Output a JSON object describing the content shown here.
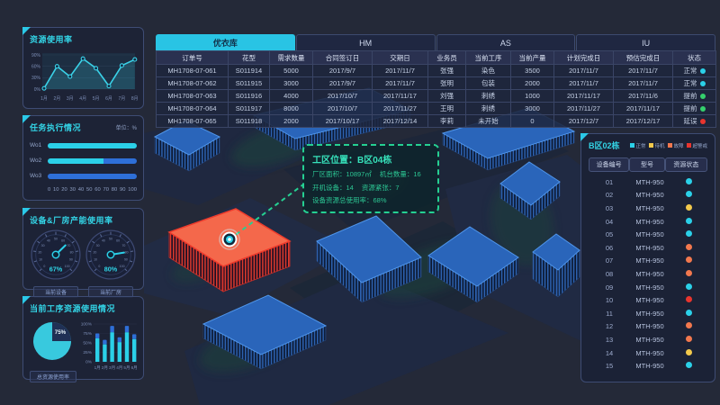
{
  "colors": {
    "accent_cyan": "#2bc9e8",
    "bar_cyan": "#2bd0e8",
    "bar_blue": "#2e6fd8",
    "status_normal": "#2bd0e8",
    "status_standby": "#f2c94c",
    "status_fault": "#f2784e",
    "status_alarm": "#e8352e",
    "status_early": "#35d06d",
    "tooltip_green": "#25d092",
    "building_blue": "#2a65ba",
    "building_selected": "#f4684b"
  },
  "panels": {
    "resource_usage": {
      "title": "资源使用率"
    },
    "task_execution": {
      "title": "任务执行情况",
      "unit_label": "单位：%"
    },
    "capacity": {
      "title": "设备&厂房产能使用率"
    },
    "current_process": {
      "title": "当前工序资源使用情况"
    }
  },
  "chart_data": [
    {
      "id": "resource-usage-line",
      "type": "line",
      "x": [
        "1月",
        "2月",
        "3月",
        "4月",
        "5月",
        "6月",
        "7月",
        "8月"
      ],
      "values": [
        2,
        60,
        33,
        80,
        55,
        8,
        62,
        78
      ],
      "yticks": [
        {
          "label": "0%",
          "value": 0
        },
        {
          "label": "30%",
          "value": 30
        },
        {
          "label": "60%",
          "value": 60
        },
        {
          "label": "90%",
          "value": 90
        }
      ],
      "ymax": 90
    },
    {
      "id": "task-execution-bars",
      "type": "bar",
      "categories": [
        "Wo1",
        "Wo2",
        "Wo3"
      ],
      "cyan": [
        100,
        63,
        0
      ],
      "blue": [
        0,
        37,
        100
      ],
      "xticks": [
        "0",
        "10",
        "20",
        "30",
        "40",
        "50",
        "60",
        "70",
        "80",
        "90",
        "100"
      ]
    },
    {
      "id": "capacity-gauges",
      "type": "gauge",
      "ticks": [
        0,
        10,
        20,
        30,
        40,
        50,
        60,
        70,
        80,
        90,
        100
      ],
      "gauges": [
        {
          "label": "当前设备",
          "value": 67,
          "display": "67%"
        },
        {
          "label": "当前厂房",
          "value": 80,
          "display": "80%"
        }
      ]
    },
    {
      "id": "process-pie",
      "type": "pie",
      "value": 75,
      "label": "75%",
      "caption": "总资源使用率"
    },
    {
      "id": "process-month-bars",
      "type": "bar",
      "categories": [
        "1月",
        "2月",
        "3月",
        "4月",
        "5月",
        "6月"
      ],
      "cyan": [
        62,
        46,
        78,
        52,
        78,
        60
      ],
      "total": [
        75,
        58,
        95,
        65,
        95,
        73
      ],
      "yticks": [
        {
          "label": "0%",
          "value": 0
        },
        {
          "label": "25%",
          "value": 25
        },
        {
          "label": "50%",
          "value": 50
        },
        {
          "label": "75%",
          "value": 75
        },
        {
          "label": "100%",
          "value": 100
        }
      ]
    }
  ],
  "orders": {
    "tabs": [
      {
        "label": "优衣库",
        "active": true
      },
      {
        "label": "HM",
        "active": false
      },
      {
        "label": "AS",
        "active": false
      },
      {
        "label": "IU",
        "active": false
      }
    ],
    "columns": [
      "订单号",
      "花型",
      "需求数量",
      "合同签订日",
      "交期日",
      "业务员",
      "当前工序",
      "当前产量",
      "计划完成日",
      "预估完成日",
      "状态"
    ],
    "rows": [
      {
        "cells": [
          "MH1708-07-061",
          "S011914",
          "5000",
          "2017/9/7",
          "2017/11/7",
          "张强",
          "染色",
          "3500",
          "2017/11/7",
          "2017/11/7"
        ],
        "status": {
          "label": "正常",
          "color": "#2bd0e8"
        }
      },
      {
        "cells": [
          "MH1708-07-062",
          "S011915",
          "3000",
          "2017/9/7",
          "2017/11/7",
          "张明",
          "包装",
          "2000",
          "2017/11/7",
          "2017/11/7"
        ],
        "status": {
          "label": "正常",
          "color": "#2bd0e8"
        }
      },
      {
        "cells": [
          "MH1708-07-063",
          "S011916",
          "4000",
          "2017/10/7",
          "2017/11/17",
          "刘强",
          "刺绣",
          "1000",
          "2017/11/17",
          "2017/11/6"
        ],
        "status": {
          "label": "提前",
          "color": "#35d06d"
        }
      },
      {
        "cells": [
          "MH1708-07-064",
          "S011917",
          "8000",
          "2017/10/7",
          "2017/11/27",
          "王明",
          "刺绣",
          "3000",
          "2017/11/27",
          "2017/11/17"
        ],
        "status": {
          "label": "提前",
          "color": "#35d06d"
        }
      },
      {
        "cells": [
          "MH1708-07-065",
          "S011918",
          "2000",
          "2017/10/17",
          "2017/12/14",
          "李莉",
          "未开始",
          "0",
          "2017/12/7",
          "2017/12/17"
        ],
        "status": {
          "label": "延误",
          "color": "#e8352e"
        }
      }
    ]
  },
  "map": {
    "tooltip": {
      "title": "工区位置：B区04栋",
      "lines": [
        [
          "厂区面积：10897㎡",
          "机台数量：16"
        ],
        [
          "开机设备：14",
          "资源紧张：7"
        ],
        [
          "设备资源总使用率：68%"
        ]
      ]
    }
  },
  "equipment_panel": {
    "title": "B区02栋",
    "legend": [
      {
        "label": "正常",
        "color": "#2bd0e8"
      },
      {
        "label": "待机",
        "color": "#f2c94c"
      },
      {
        "label": "故障",
        "color": "#f2784e"
      },
      {
        "label": "超警戒",
        "color": "#e8352e"
      }
    ],
    "columns": [
      "设备编号",
      "型号",
      "资源状态"
    ],
    "status_colors": {
      "normal": "#2bd0e8",
      "standby": "#f2c94c",
      "fault": "#f2784e",
      "alarm": "#e8352e"
    },
    "rows": [
      {
        "id": "01",
        "model": "MTH-950",
        "status": "normal"
      },
      {
        "id": "02",
        "model": "MTH-950",
        "status": "normal"
      },
      {
        "id": "03",
        "model": "MTH-950",
        "status": "standby"
      },
      {
        "id": "04",
        "model": "MTH-950",
        "status": "normal"
      },
      {
        "id": "05",
        "model": "MTH-950",
        "status": "normal"
      },
      {
        "id": "06",
        "model": "MTH-950",
        "status": "fault"
      },
      {
        "id": "07",
        "model": "MTH-950",
        "status": "fault"
      },
      {
        "id": "08",
        "model": "MTH-950",
        "status": "fault"
      },
      {
        "id": "09",
        "model": "MTH-950",
        "status": "normal"
      },
      {
        "id": "10",
        "model": "MTH-950",
        "status": "alarm"
      },
      {
        "id": "11",
        "model": "MTH-950",
        "status": "normal"
      },
      {
        "id": "12",
        "model": "MTH-950",
        "status": "fault"
      },
      {
        "id": "13",
        "model": "MTH-950",
        "status": "fault"
      },
      {
        "id": "14",
        "model": "MTH-950",
        "status": "standby"
      },
      {
        "id": "15",
        "model": "MTH-950",
        "status": "normal"
      }
    ]
  }
}
